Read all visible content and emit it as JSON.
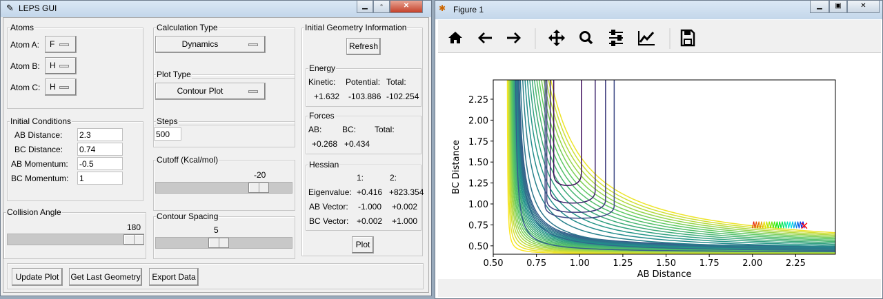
{
  "leps": {
    "title": "LEPS GUI",
    "atoms": {
      "legend": "Atoms",
      "a_label": "Atom A:",
      "a_value": "F",
      "b_label": "Atom B:",
      "b_value": "H",
      "c_label": "Atom C:",
      "c_value": "H"
    },
    "calc": {
      "legend": "Calculation Type",
      "value": "Dynamics"
    },
    "plot_type": {
      "legend": "Plot Type",
      "value": "Contour Plot"
    },
    "initial": {
      "legend": "Initial Conditions",
      "ab_dist_label": "AB Distance:",
      "ab_dist": "2.3",
      "bc_dist_label": "BC Distance:",
      "bc_dist": "0.74",
      "ab_mom_label": "AB Momentum:",
      "ab_mom": "-0.5",
      "bc_mom_label": "BC Momentum:",
      "bc_mom": "1"
    },
    "steps": {
      "legend": "Steps",
      "value": "500"
    },
    "cutoff": {
      "legend": "Cutoff (Kcal/mol)",
      "value": "-20"
    },
    "collision": {
      "legend": "Collision Angle",
      "value": "180"
    },
    "spacing": {
      "legend": "Contour Spacing",
      "value": "5"
    },
    "geom": {
      "legend": "Initial Geometry Information",
      "refresh": "Refresh",
      "plot": "Plot",
      "energy": {
        "legend": "Energy",
        "kinetic_label": "Kinetic:",
        "potential_label": "Potential:",
        "total_label": "Total:",
        "kinetic": "+1.632",
        "potential": "-103.886",
        "total": "-102.254"
      },
      "forces": {
        "legend": "Forces",
        "ab_label": "AB:",
        "bc_label": "BC:",
        "total_label": "Total:",
        "ab": "+0.268",
        "bc": "+0.434"
      },
      "hessian": {
        "legend": "Hessian",
        "col1": "1:",
        "col2": "2:",
        "eig_label": "Eigenvalue:",
        "eig1": "+0.416",
        "eig2": "+823.354",
        "abv_label": "AB Vector:",
        "abv1": "-1.000",
        "abv2": "+0.002",
        "bcv_label": "BC Vector:",
        "bcv1": "+0.002",
        "bcv2": "+1.000"
      }
    },
    "buttons": {
      "update": "Update Plot",
      "last": "Get Last Geometry",
      "export": "Export Data"
    }
  },
  "figure": {
    "title": "Figure 1",
    "toolbar": [
      "home-icon",
      "back-arrow-icon",
      "forward-arrow-icon",
      "pan-icon",
      "zoom-icon",
      "configure-subplots-icon",
      "edit-axis-icon",
      "save-icon"
    ],
    "chart_data": {
      "type": "contour",
      "xlabel": "AB Distance",
      "ylabel": "BC Distance",
      "xlim": [
        0.5,
        2.48
      ],
      "ylim": [
        0.4,
        2.48
      ],
      "xticks": [
        "0.50",
        "0.75",
        "1.00",
        "1.25",
        "1.50",
        "1.75",
        "2.00",
        "2.25"
      ],
      "yticks": [
        "0.50",
        "0.75",
        "1.00",
        "1.25",
        "1.50",
        "1.75",
        "2.00",
        "2.25"
      ],
      "colormap": "viridis",
      "trajectory": {
        "start": [
          2.3,
          0.74
        ],
        "end": [
          2.0,
          0.76
        ],
        "marker_color": "#ff0000"
      }
    }
  }
}
